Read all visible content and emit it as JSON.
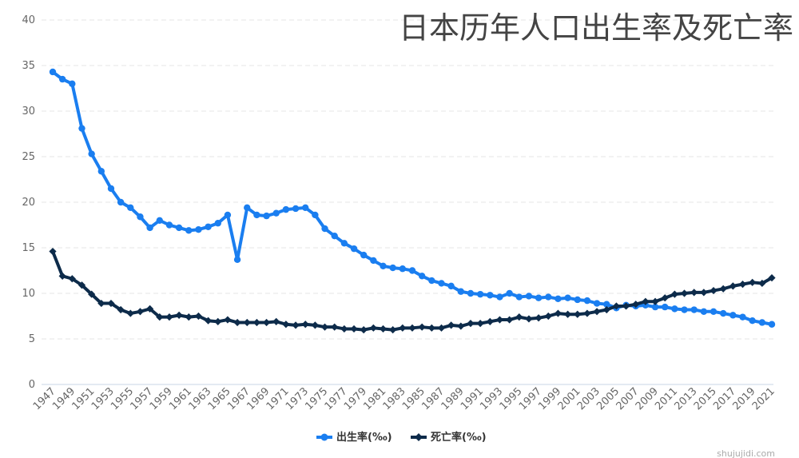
{
  "chart_data": {
    "type": "line",
    "title": "日本历年人口出生率及死亡率",
    "xlabel": "",
    "ylabel": "",
    "ylim": [
      0,
      40
    ],
    "yticks": [
      0,
      5,
      10,
      15,
      20,
      25,
      30,
      35,
      40
    ],
    "x": [
      1947,
      1948,
      1949,
      1950,
      1951,
      1952,
      1953,
      1954,
      1955,
      1956,
      1957,
      1958,
      1959,
      1960,
      1961,
      1962,
      1963,
      1964,
      1965,
      1966,
      1967,
      1968,
      1969,
      1970,
      1971,
      1972,
      1973,
      1974,
      1975,
      1976,
      1977,
      1978,
      1979,
      1980,
      1981,
      1982,
      1983,
      1984,
      1985,
      1986,
      1987,
      1988,
      1989,
      1990,
      1991,
      1992,
      1993,
      1994,
      1995,
      1996,
      1997,
      1998,
      1999,
      2000,
      2001,
      2002,
      2003,
      2004,
      2005,
      2006,
      2007,
      2008,
      2009,
      2010,
      2011,
      2012,
      2013,
      2014,
      2015,
      2016,
      2017,
      2018,
      2019,
      2020,
      2021
    ],
    "xtick_labels": [
      "1947",
      "1949",
      "1951",
      "1953",
      "1955",
      "1957",
      "1959",
      "1961",
      "1963",
      "1965",
      "1967",
      "1969",
      "1971",
      "1973",
      "1975",
      "1977",
      "1979",
      "1981",
      "1983",
      "1985",
      "1987",
      "1989",
      "1991",
      "1993",
      "1995",
      "1997",
      "1999",
      "2001",
      "2003",
      "2005",
      "2007",
      "2009",
      "2011",
      "2013",
      "2015",
      "2017",
      "2019",
      "2021"
    ],
    "grid": true,
    "legend_position": "bottom",
    "series": [
      {
        "name": "出生率(‰)",
        "color": "#1a7ef0",
        "marker": "circle",
        "values": [
          34.3,
          33.5,
          33.0,
          28.1,
          25.3,
          23.4,
          21.5,
          20.0,
          19.4,
          18.4,
          17.2,
          18.0,
          17.5,
          17.2,
          16.9,
          17.0,
          17.3,
          17.7,
          18.6,
          13.7,
          19.4,
          18.6,
          18.5,
          18.8,
          19.2,
          19.3,
          19.4,
          18.6,
          17.1,
          16.3,
          15.5,
          14.9,
          14.2,
          13.6,
          13.0,
          12.8,
          12.7,
          12.5,
          11.9,
          11.4,
          11.1,
          10.8,
          10.2,
          10.0,
          9.9,
          9.8,
          9.6,
          10.0,
          9.6,
          9.7,
          9.5,
          9.6,
          9.4,
          9.5,
          9.3,
          9.2,
          8.9,
          8.8,
          8.4,
          8.7,
          8.6,
          8.7,
          8.5,
          8.5,
          8.3,
          8.2,
          8.2,
          8.0,
          8.0,
          7.8,
          7.6,
          7.4,
          7.0,
          6.8,
          6.6
        ]
      },
      {
        "name": "死亡率(‰)",
        "color": "#0d2b4a",
        "marker": "diamond",
        "values": [
          14.6,
          11.9,
          11.6,
          10.9,
          9.9,
          8.9,
          8.9,
          8.2,
          7.8,
          8.0,
          8.3,
          7.4,
          7.4,
          7.6,
          7.4,
          7.5,
          7.0,
          6.9,
          7.1,
          6.8,
          6.8,
          6.8,
          6.8,
          6.9,
          6.6,
          6.5,
          6.6,
          6.5,
          6.3,
          6.3,
          6.1,
          6.1,
          6.0,
          6.2,
          6.1,
          6.0,
          6.2,
          6.2,
          6.3,
          6.2,
          6.2,
          6.5,
          6.4,
          6.7,
          6.7,
          6.9,
          7.1,
          7.1,
          7.4,
          7.2,
          7.3,
          7.5,
          7.8,
          7.7,
          7.7,
          7.8,
          8.0,
          8.2,
          8.6,
          8.6,
          8.8,
          9.1,
          9.1,
          9.5,
          9.9,
          10.0,
          10.1,
          10.1,
          10.3,
          10.5,
          10.8,
          11.0,
          11.2,
          11.1,
          11.7
        ]
      }
    ]
  },
  "watermark": "shujujidi.com"
}
